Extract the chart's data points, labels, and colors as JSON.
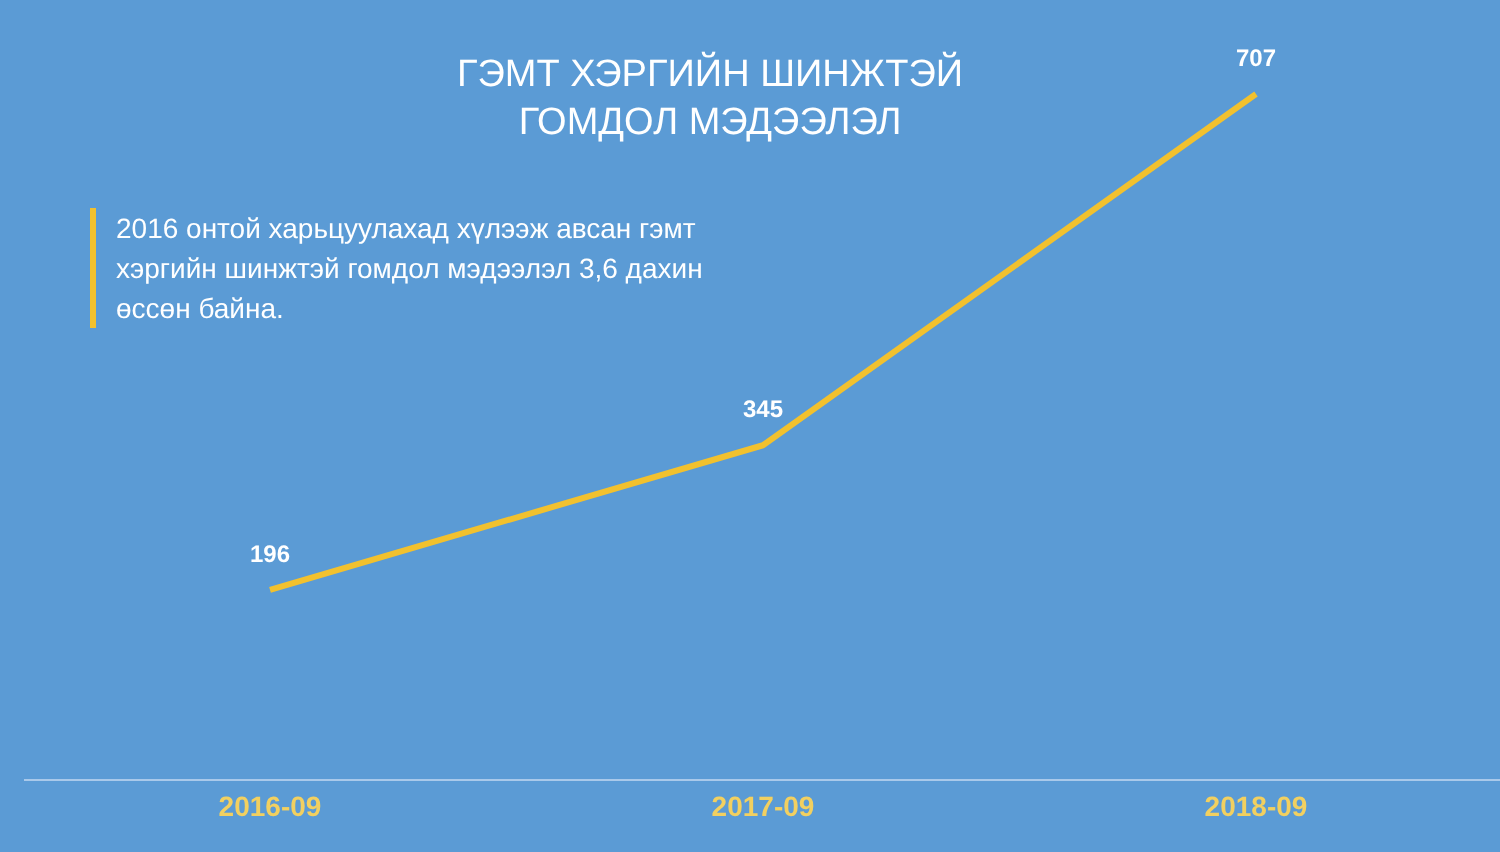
{
  "chart_data": {
    "type": "line",
    "title": "ГЭМТ ХЭРГИЙН ШИНЖТЭЙ\nГОМДОЛ МЭДЭЭЛЭЛ",
    "categories": [
      "2016-09",
      "2017-09",
      "2018-09"
    ],
    "series": [
      {
        "color": "#f2c12e",
        "values": [
          196,
          345,
          707
        ]
      }
    ],
    "data_labels": true,
    "marker": "none",
    "annotations": [
      "2016 онтой харьцуулахад хүлээж авсан гэмт хэргийн шинжтэй гомдол мэдээлэл 3,6 дахин өссөн байна."
    ]
  }
}
